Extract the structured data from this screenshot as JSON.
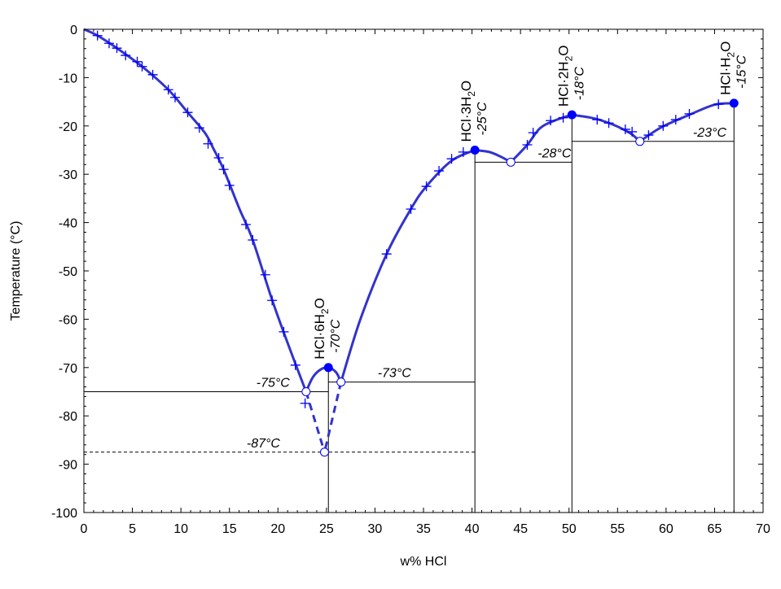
{
  "chart_data": {
    "type": "line",
    "title": "",
    "xlabel": "w% HCl",
    "ylabel": "Temperature (°C)",
    "xlim": [
      0,
      70
    ],
    "ylim": [
      -100,
      0
    ],
    "xticks": [
      0,
      5,
      10,
      15,
      20,
      25,
      30,
      35,
      40,
      45,
      50,
      55,
      60,
      65,
      70
    ],
    "yticks": [
      0,
      -10,
      -20,
      -30,
      -40,
      -50,
      -60,
      -70,
      -80,
      -90,
      -100
    ],
    "grid": false,
    "colors": {
      "curve": "#3333cc",
      "points": "#0000ff",
      "lines": "#000000"
    },
    "liquidus_branches": [
      [
        [
          0,
          0
        ],
        [
          1.4,
          -1.3
        ],
        [
          3.4,
          -3.9
        ],
        [
          6,
          -7.7
        ],
        [
          8.7,
          -12.5
        ],
        [
          10.7,
          -17.2
        ],
        [
          12.5,
          -21.5
        ],
        [
          13.3,
          -24.5
        ],
        [
          14.4,
          -29
        ],
        [
          16,
          -37
        ],
        [
          17.4,
          -43.6
        ],
        [
          19.4,
          -56
        ],
        [
          21.2,
          -66
        ],
        [
          22.9,
          -75
        ]
      ],
      [
        [
          22.9,
          -75
        ],
        [
          23.6,
          -72
        ],
        [
          24.4,
          -70.4
        ],
        [
          25.2,
          -70
        ],
        [
          26,
          -71
        ],
        [
          26.5,
          -73
        ]
      ],
      [
        [
          26.5,
          -73
        ],
        [
          28.5,
          -60
        ],
        [
          31.2,
          -46.5
        ],
        [
          33.7,
          -37.2
        ],
        [
          35.3,
          -32.5
        ],
        [
          37.9,
          -27.2
        ],
        [
          40.3,
          -25
        ]
      ],
      [
        [
          40.3,
          -25
        ],
        [
          41.8,
          -25.4
        ],
        [
          43,
          -26.4
        ],
        [
          44,
          -27.5
        ]
      ],
      [
        [
          44,
          -27.5
        ],
        [
          45.7,
          -23.9
        ],
        [
          47,
          -20.5
        ],
        [
          48.5,
          -18.9
        ],
        [
          50.3,
          -17.7
        ]
      ],
      [
        [
          50.3,
          -17.7
        ],
        [
          52.5,
          -18.4
        ],
        [
          54.5,
          -19.7
        ],
        [
          56.3,
          -21.5
        ],
        [
          57.3,
          -23.2
        ]
      ],
      [
        [
          57.3,
          -23.2
        ],
        [
          59.5,
          -20.3
        ],
        [
          62.4,
          -17.7
        ],
        [
          65,
          -15.6
        ],
        [
          67,
          -15.3
        ]
      ]
    ],
    "metastable_branches": [
      [
        [
          22.9,
          -75
        ],
        [
          24.8,
          -87.5
        ]
      ],
      [
        [
          26.5,
          -73
        ],
        [
          24.8,
          -87.5
        ]
      ]
    ],
    "experimental_points": [
      [
        1.4,
        -1.3
      ],
      [
        2.6,
        -2.9
      ],
      [
        3.4,
        -3.9
      ],
      [
        4.3,
        -5.4
      ],
      [
        5.5,
        -6.7
      ],
      [
        6,
        -7.7
      ],
      [
        7.1,
        -9.4
      ],
      [
        8.7,
        -12.5
      ],
      [
        9.4,
        -14.1
      ],
      [
        10.7,
        -17.2
      ],
      [
        11.9,
        -20.4
      ],
      [
        12.8,
        -23.7
      ],
      [
        13.9,
        -26.6
      ],
      [
        14.4,
        -29
      ],
      [
        15,
        -32.3
      ],
      [
        16.7,
        -40.4
      ],
      [
        17.4,
        -43.6
      ],
      [
        18.7,
        -50.8
      ],
      [
        19.4,
        -56.1
      ],
      [
        20.6,
        -62.6
      ],
      [
        21.8,
        -69.5
      ],
      [
        22.8,
        -77.4
      ],
      [
        31.2,
        -46.5
      ],
      [
        33.7,
        -37.2
      ],
      [
        35.3,
        -32.5
      ],
      [
        36.6,
        -29.3
      ],
      [
        37.9,
        -26.8
      ],
      [
        39.1,
        -25.4
      ],
      [
        45.7,
        -23.9
      ],
      [
        46.3,
        -21.4
      ],
      [
        48.1,
        -18.9
      ],
      [
        49.4,
        -18.3
      ],
      [
        52.9,
        -18.7
      ],
      [
        54.1,
        -19.4
      ],
      [
        55.8,
        -20.7
      ],
      [
        56.5,
        -21.2
      ],
      [
        58.2,
        -21.9
      ],
      [
        59.7,
        -20
      ],
      [
        61,
        -18.7
      ],
      [
        62.4,
        -17.5
      ],
      [
        65.4,
        -15.5
      ]
    ],
    "congruent_points": [
      {
        "x": 25.2,
        "y": -70,
        "formula": "HCl·6H",
        "sub": "2",
        "tail": "O",
        "temp": "-70°C"
      },
      {
        "x": 40.3,
        "y": -25,
        "formula": "HCl·3H",
        "sub": "2",
        "tail": "O",
        "temp": "-25°C"
      },
      {
        "x": 50.3,
        "y": -17.7,
        "formula": "HCl·2H",
        "sub": "2",
        "tail": "O",
        "temp": "-18°C"
      },
      {
        "x": 67,
        "y": -15.3,
        "formula": "HCl·H",
        "sub": "2",
        "tail": "O",
        "temp": "-15°C"
      }
    ],
    "eutectic_points": [
      {
        "x": 22.9,
        "y": -75
      },
      {
        "x": 26.5,
        "y": -73
      },
      {
        "x": 24.8,
        "y": -87.5
      },
      {
        "x": 44,
        "y": -27.5
      },
      {
        "x": 57.3,
        "y": -23.2
      }
    ],
    "eutectic_lines": [
      {
        "y": -75,
        "x0": 0,
        "x1": 25.2,
        "label": "-75°C",
        "lx": 19.5,
        "dashed": false
      },
      {
        "y": -73,
        "x0": 25.2,
        "x1": 40.3,
        "label": "-73°C",
        "lx": 32,
        "dashed": false
      },
      {
        "y": -87.5,
        "x0": 0,
        "x1": 40.3,
        "label": "-87°C",
        "lx": 18.5,
        "dashed": true
      },
      {
        "y": -27.5,
        "x0": 40.3,
        "x1": 50.3,
        "label": "-28°C",
        "lx": 48.5,
        "dashed": false
      },
      {
        "y": -23.2,
        "x0": 50.3,
        "x1": 67,
        "label": "-23°C",
        "lx": 64.5,
        "dashed": false
      }
    ],
    "vertical_lines": [
      {
        "x": 25.2,
        "y0": -70,
        "y1": -100
      },
      {
        "x": 40.3,
        "y0": -25,
        "y1": -100
      },
      {
        "x": 50.3,
        "y0": -17.7,
        "y1": -100
      },
      {
        "x": 67,
        "y0": -15.3,
        "y1": -100
      }
    ]
  }
}
